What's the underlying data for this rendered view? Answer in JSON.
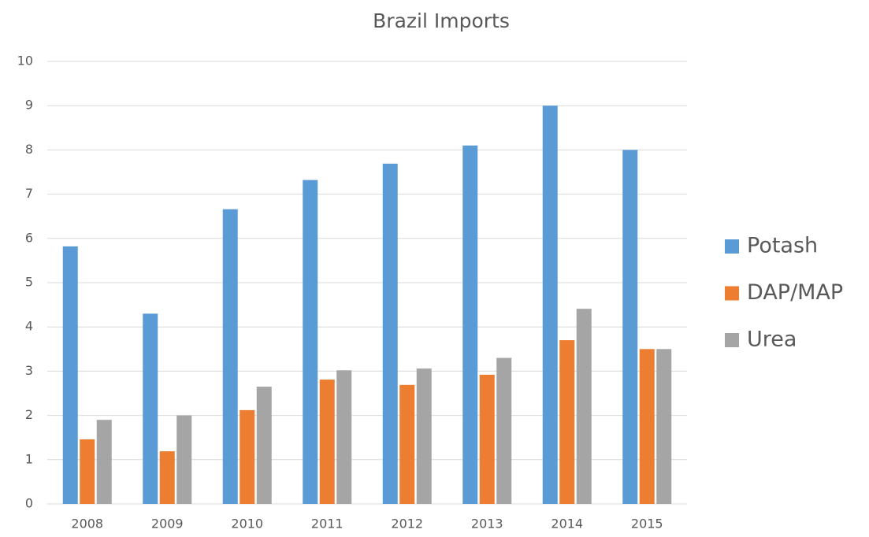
{
  "chart_data": {
    "type": "bar",
    "title": "Brazil Imports",
    "categories": [
      "2008",
      "2009",
      "2010",
      "2011",
      "2012",
      "2013",
      "2014",
      "2015"
    ],
    "series": [
      {
        "name": "Potash",
        "color": "#5b9bd5",
        "values": [
          5.82,
          4.3,
          6.66,
          7.32,
          7.69,
          8.1,
          9.0,
          8.0
        ]
      },
      {
        "name": "DAP/MAP",
        "color": "#ed7d31",
        "values": [
          1.46,
          1.19,
          2.12,
          2.81,
          2.69,
          2.92,
          3.7,
          3.5
        ]
      },
      {
        "name": "Urea",
        "color": "#a5a5a5",
        "values": [
          1.9,
          2.0,
          2.65,
          3.02,
          3.06,
          3.3,
          4.41,
          3.5
        ]
      }
    ],
    "ylim": [
      0,
      10
    ],
    "yticks": [
      0,
      1,
      2,
      3,
      4,
      5,
      6,
      7,
      8,
      9,
      10
    ],
    "grid": true,
    "legend": "right"
  }
}
